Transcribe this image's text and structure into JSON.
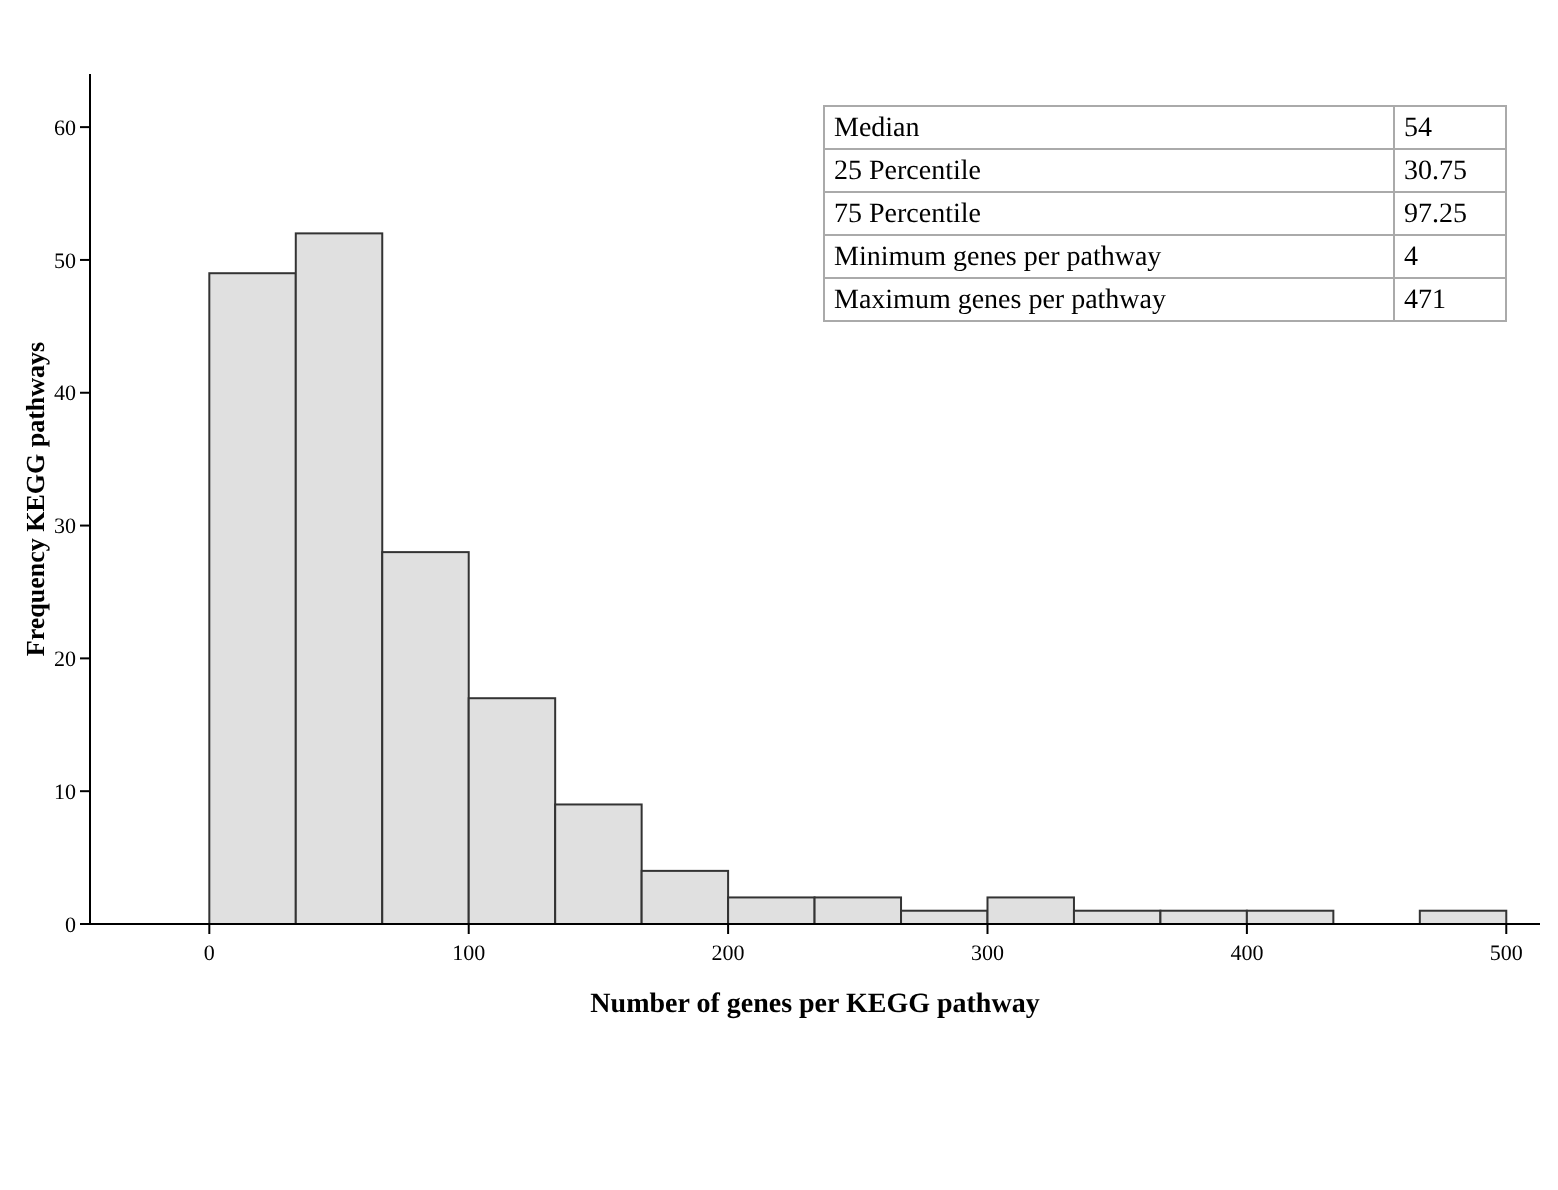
{
  "chart_data": {
    "type": "histogram",
    "xlabel": "Number of genes per KEGG pathway",
    "ylabel": "Frequency KEGG pathways",
    "bins": [
      0,
      33.333,
      66.667,
      100,
      133.333,
      166.667,
      200,
      233.333,
      266.667,
      300,
      333.333,
      366.667,
      400,
      433.333,
      466.667,
      500
    ],
    "values": [
      49,
      52,
      28,
      17,
      9,
      4,
      2,
      2,
      1,
      2,
      1,
      1,
      1,
      0,
      1
    ],
    "color": "#e0e0e0",
    "xlim": [
      -46,
      513
    ],
    "xticks": [
      0,
      100,
      200,
      300,
      400,
      500
    ],
    "ylim": [
      0,
      64
    ],
    "yticks": [
      0,
      10,
      20,
      30,
      40,
      50,
      60
    ],
    "grid": false,
    "annotations": [
      "Median",
      "54",
      "25 Percentile",
      "30.75",
      "75 Percentile",
      "97.25",
      "Minimum genes per pathway",
      "4",
      "Maximum genes per pathway",
      "471"
    ]
  }
}
